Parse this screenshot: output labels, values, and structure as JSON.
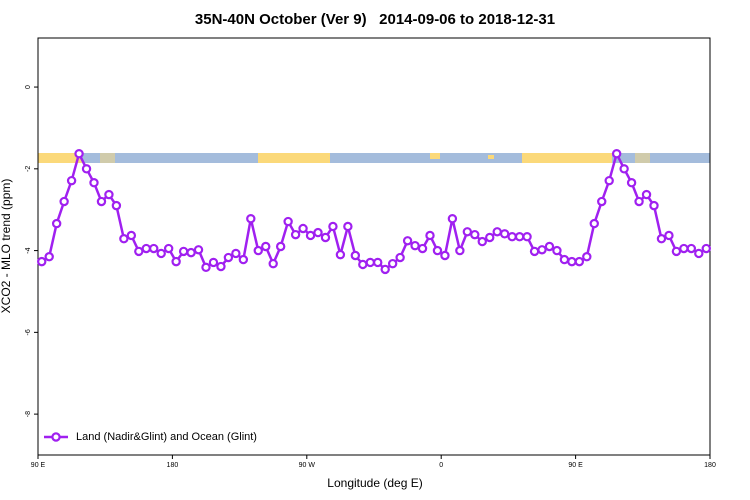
{
  "chart_data": {
    "type": "line",
    "title": "35N-40N October (Ver 9)   2014-09-06 to 2018-12-31",
    "x_label": "Longitude (deg E)",
    "y_label": "XCO2 - MLO trend (ppm)",
    "xlim": [
      90,
      540
    ],
    "xticks": [
      {
        "value": 90,
        "label": "90 E"
      },
      {
        "value": 180,
        "label": "180"
      },
      {
        "value": 270,
        "label": "90 W"
      },
      {
        "value": 360,
        "label": "0"
      },
      {
        "value": 450,
        "label": "90 E"
      },
      {
        "value": 540,
        "label": "180"
      }
    ],
    "ylim": [
      -9,
      1.2
    ],
    "yticks": [
      -8,
      -6,
      -4,
      -2,
      0
    ],
    "legend": "bottom-left",
    "x": [
      92.5,
      97.5,
      102.5,
      107.5,
      112.5,
      117.5,
      122.5,
      127.5,
      132.5,
      137.5,
      142.5,
      147.5,
      152.5,
      157.5,
      162.5,
      167.5,
      172.5,
      177.5,
      182.5,
      187.5,
      192.5,
      197.5,
      202.5,
      207.5,
      212.5,
      217.5,
      222.5,
      227.5,
      232.5,
      237.5,
      242.5,
      247.5,
      252.5,
      257.5,
      262.5,
      267.5,
      272.5,
      277.5,
      282.5,
      287.5,
      292.5,
      297.5,
      302.5,
      307.5,
      312.5,
      317.5,
      322.5,
      327.5,
      332.5,
      337.5,
      342.5,
      347.5,
      352.5,
      357.5,
      362.5,
      367.5,
      372.5,
      377.5,
      382.5,
      387.5,
      392.5,
      397.5,
      402.5,
      407.5,
      412.5,
      417.5,
      422.5,
      427.5,
      432.5,
      437.5,
      442.5,
      447.5,
      452.5,
      457.5,
      462.5,
      467.5,
      472.5,
      477.5,
      482.5,
      487.5,
      492.5,
      497.5,
      502.5,
      507.5,
      512.5,
      517.5,
      522.5,
      527.5,
      532.5,
      537.5
    ],
    "series": [
      {
        "name": "Land (Nadir&Glint) and Ocean (Glint)",
        "color": "#a020f0",
        "values": [
          -4.27,
          -4.15,
          -3.34,
          -2.8,
          -2.29,
          -1.63,
          -2.0,
          -2.34,
          -2.8,
          -2.63,
          -2.9,
          -3.71,
          -3.63,
          -4.02,
          -3.95,
          -3.95,
          -4.07,
          -3.95,
          -4.27,
          -4.02,
          -4.05,
          -3.98,
          -4.41,
          -4.29,
          -4.39,
          -4.17,
          -4.07,
          -4.22,
          -3.22,
          -4.0,
          -3.9,
          -4.32,
          -3.9,
          -3.29,
          -3.61,
          -3.46,
          -3.63,
          -3.56,
          -3.68,
          -3.41,
          -4.1,
          -3.41,
          -4.12,
          -4.34,
          -4.29,
          -4.29,
          -4.46,
          -4.32,
          -4.17,
          -3.76,
          -3.88,
          -3.95,
          -3.63,
          -4.0,
          -4.12,
          -3.22,
          -4.0,
          -3.54,
          -3.61,
          -3.78,
          -3.68,
          -3.54,
          -3.59,
          -3.66,
          -3.66,
          -3.66,
          -4.02,
          -3.98,
          -3.9,
          -4.0,
          -4.22,
          -4.27,
          -4.27,
          -4.15,
          -3.34,
          -2.8,
          -2.29,
          -1.63,
          -2.0,
          -2.34,
          -2.8,
          -2.63,
          -2.9,
          -3.71,
          -3.63,
          -4.02,
          -3.95,
          -3.95,
          -4.07,
          -3.95
        ]
      }
    ]
  }
}
